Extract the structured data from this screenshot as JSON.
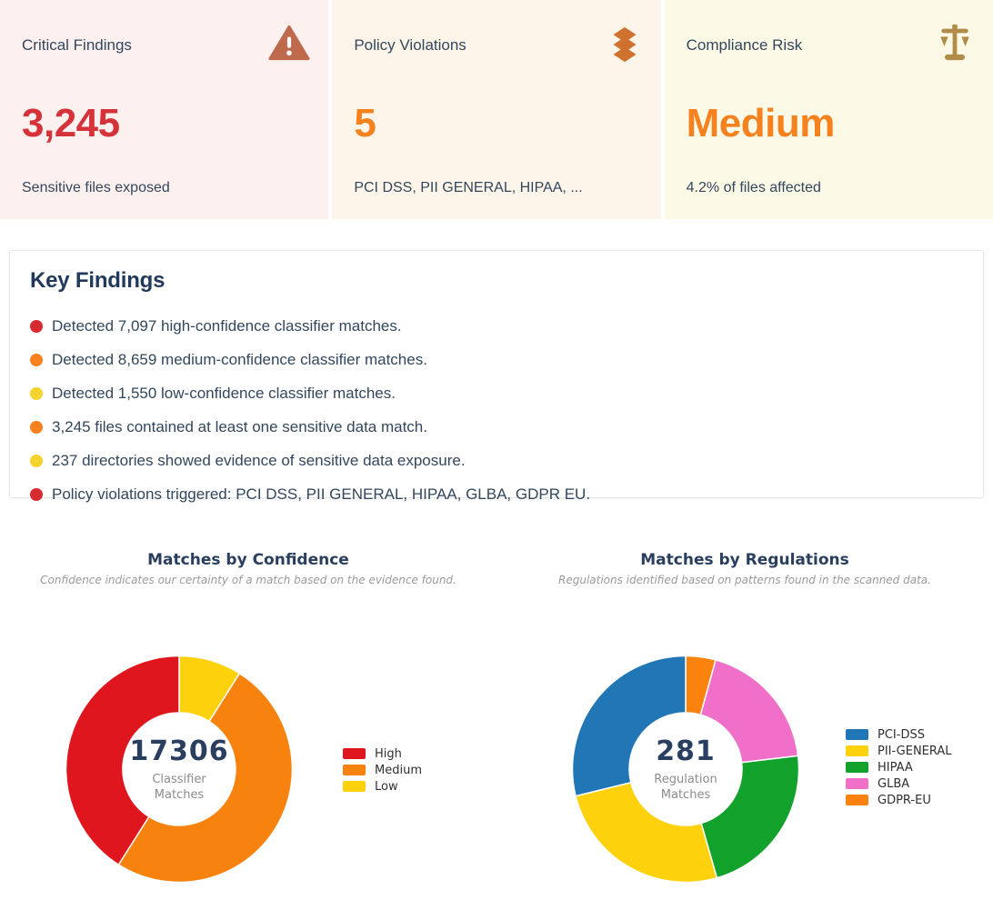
{
  "summary_cards": [
    {
      "title": "Critical Findings",
      "value": "3,245",
      "subtitle": "Sensitive files exposed",
      "icon": "warning-triangle-icon",
      "bg_color": "#fdf1f0",
      "value_color": "#d5323a",
      "icon_color": "#c06a4d"
    },
    {
      "title": "Policy Violations",
      "value": "5",
      "subtitle": "PCI DSS, PII GENERAL, HIPAA, ...",
      "icon": "layers-icon",
      "bg_color": "#fdf5e9",
      "value_color": "#f5821f",
      "icon_color": "#d0722f"
    },
    {
      "title": "Compliance Risk",
      "value": "Medium",
      "subtitle": "4.2% of files affected",
      "icon": "scale-icon",
      "bg_color": "#fcf9e7",
      "value_color": "#f5821f",
      "icon_color": "#b08c48"
    }
  ],
  "key_findings": {
    "heading": "Key Findings",
    "items": [
      {
        "text": "Detected 7,097 high-confidence classifier matches.",
        "bullet_color": "#d62b31"
      },
      {
        "text": "Detected 8,659 medium-confidence classifier matches.",
        "bullet_color": "#f5821f"
      },
      {
        "text": "Detected 1,550 low-confidence classifier matches.",
        "bullet_color": "#f5d32e"
      },
      {
        "text": "3,245 files contained at least one sensitive data match.",
        "bullet_color": "#f5821f"
      },
      {
        "text": "237 directories showed evidence of sensitive data exposure.",
        "bullet_color": "#f5d32e"
      },
      {
        "text": "Policy violations triggered: PCI DSS, PII GENERAL, HIPAA, GLBA, GDPR EU.",
        "bullet_color": "#d62b31"
      }
    ]
  },
  "chart_data": [
    {
      "type": "donut",
      "title": "Matches by Confidence",
      "subtitle": "Confidence indicates our certainty of a match based on the evidence found.",
      "center_value": "17306",
      "center_label": "Classifier Matches",
      "total": 17306,
      "legend_position": "right",
      "direction": "counterclockwise-from-top",
      "series": [
        {
          "name": "High",
          "value": 7097,
          "color": "#e0161f"
        },
        {
          "name": "Medium",
          "value": 8659,
          "color": "#f8820e"
        },
        {
          "name": "Low",
          "value": 1550,
          "color": "#fdd20d"
        }
      ]
    },
    {
      "type": "donut",
      "title": "Matches by Regulations",
      "subtitle": "Regulations identified based on patterns found in the scanned data.",
      "center_value": "281",
      "center_label": "Regulation Matches",
      "total": 281,
      "legend_position": "right",
      "direction": "counterclockwise-from-top",
      "series": [
        {
          "name": "PCI-DSS",
          "value": 81,
          "color": "#2176b5"
        },
        {
          "name": "PII-GENERAL",
          "value": 72,
          "color": "#fdd20d"
        },
        {
          "name": "HIPAA",
          "value": 63,
          "color": "#12a22b"
        },
        {
          "name": "GLBA",
          "value": 53,
          "color": "#ef6fc9"
        },
        {
          "name": "GDPR-EU",
          "value": 12,
          "color": "#fb820d"
        }
      ]
    }
  ]
}
